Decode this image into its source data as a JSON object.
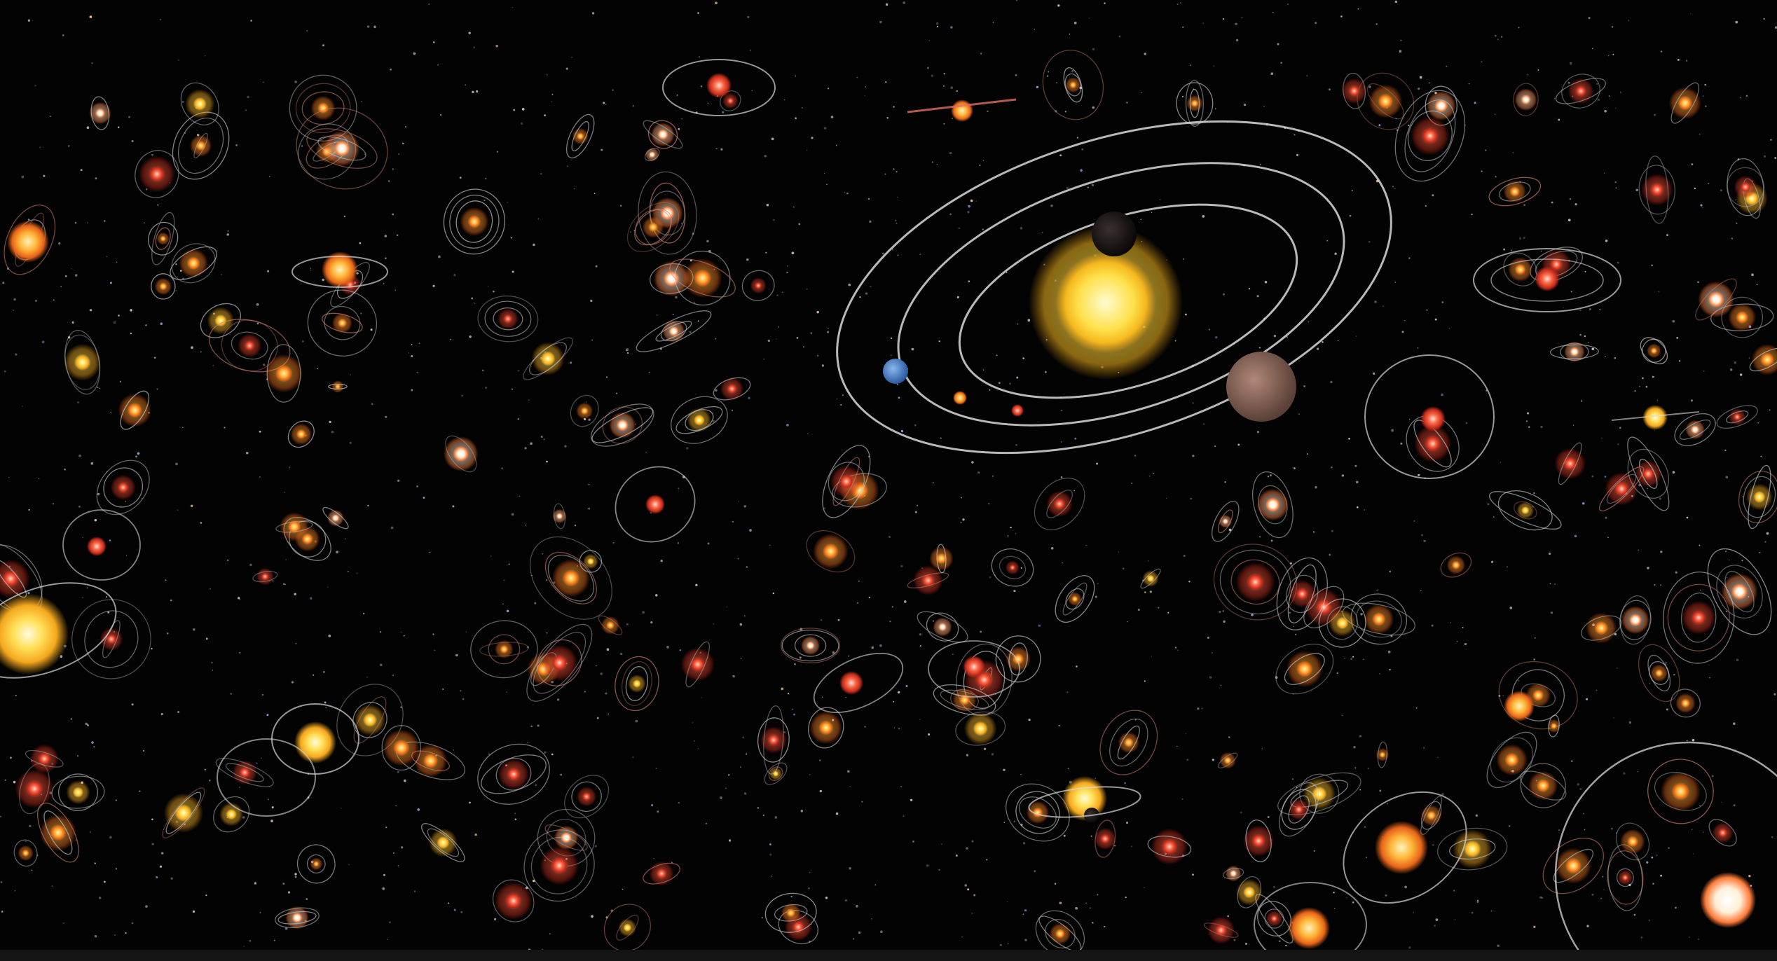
{
  "scene": {
    "description_tag": "exoplanet-systems-illustration",
    "colors": {
      "background": "#030303",
      "orbit_line": "#d9d9d9",
      "star_yellow": "#ffd23a",
      "star_orange": "#ff9a2a",
      "star_red": "#ff5a3a",
      "star_white": "#fff4e0",
      "planet_blue": "#5b8fd6",
      "planet_brown": "#8a6a5a",
      "planet_dark": "#1a1a1a",
      "bottom_bar": "#141414"
    },
    "icons": [
      "featured-solar-system",
      "star-system",
      "background-star"
    ]
  }
}
